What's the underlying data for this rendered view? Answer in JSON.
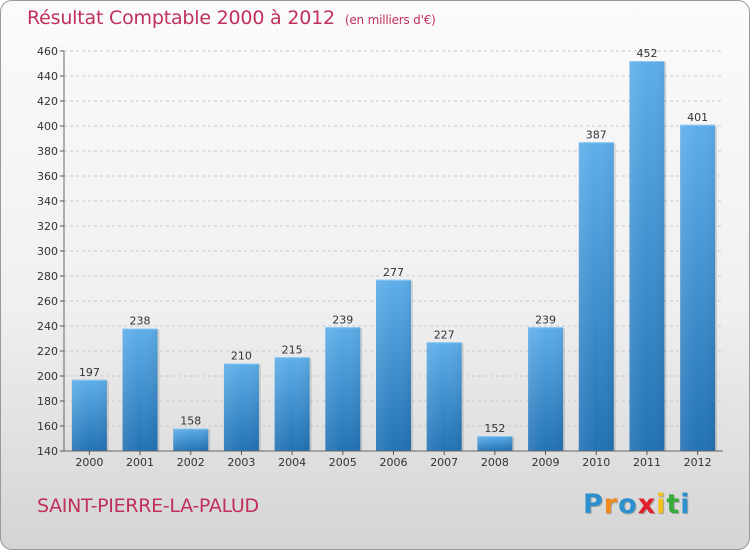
{
  "page": {
    "title": "Résultat Comptable 2000 à 2012",
    "subtitle": "(en milliers d'€)",
    "place": "SAINT-PIERRE-LA-PALUD",
    "logo": {
      "letters": [
        "P",
        "r",
        "o",
        "x",
        "i",
        "t",
        "i"
      ],
      "colors": [
        "#2c8fce",
        "#f08a1c",
        "#2c8fce",
        "#e0202a",
        "#f2c21a",
        "#3aaa3a",
        "#2c8fce"
      ]
    }
  },
  "chart_data": {
    "type": "bar",
    "title": "Résultat Comptable 2000 à 2012",
    "subtitle": "(en milliers d'€)",
    "xlabel": "",
    "ylabel": "",
    "categories": [
      "2000",
      "2001",
      "2002",
      "2003",
      "2004",
      "2005",
      "2006",
      "2007",
      "2008",
      "2009",
      "2010",
      "2011",
      "2012"
    ],
    "values": [
      197,
      238,
      158,
      210,
      215,
      239,
      277,
      227,
      152,
      239,
      387,
      452,
      401
    ],
    "ylim": [
      140,
      460
    ],
    "yticks": [
      140,
      160,
      180,
      200,
      220,
      240,
      260,
      280,
      300,
      320,
      340,
      360,
      380,
      400,
      420,
      440,
      460
    ],
    "grid": true,
    "bar_color": "#4f9fe0",
    "bar_color_dark": "#2676b8"
  }
}
